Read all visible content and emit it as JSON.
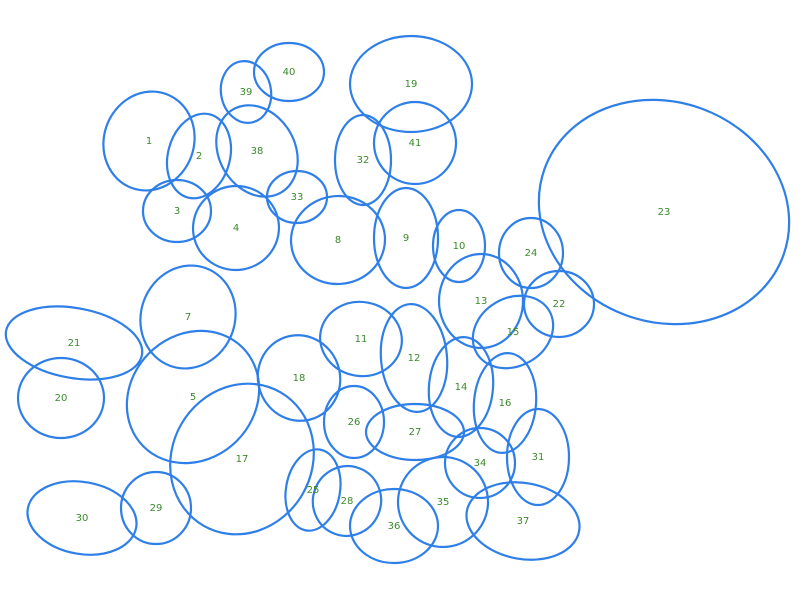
{
  "diagram": {
    "labels": [
      "1",
      "2",
      "3",
      "4",
      "5",
      "7",
      "8",
      "9",
      "10",
      "11",
      "12",
      "13",
      "14",
      "15",
      "16",
      "17",
      "18",
      "19",
      "20",
      "21",
      "22",
      "23",
      "24",
      "25",
      "26",
      "27",
      "28",
      "29",
      "30",
      "31",
      "32",
      "33",
      "34",
      "35",
      "36",
      "37",
      "38",
      "39",
      "40",
      "41"
    ],
    "colors": {
      "ellipse_stroke": "#2f7fe8",
      "label_text": "#3a8a2a",
      "background": "#ffffff"
    }
  }
}
